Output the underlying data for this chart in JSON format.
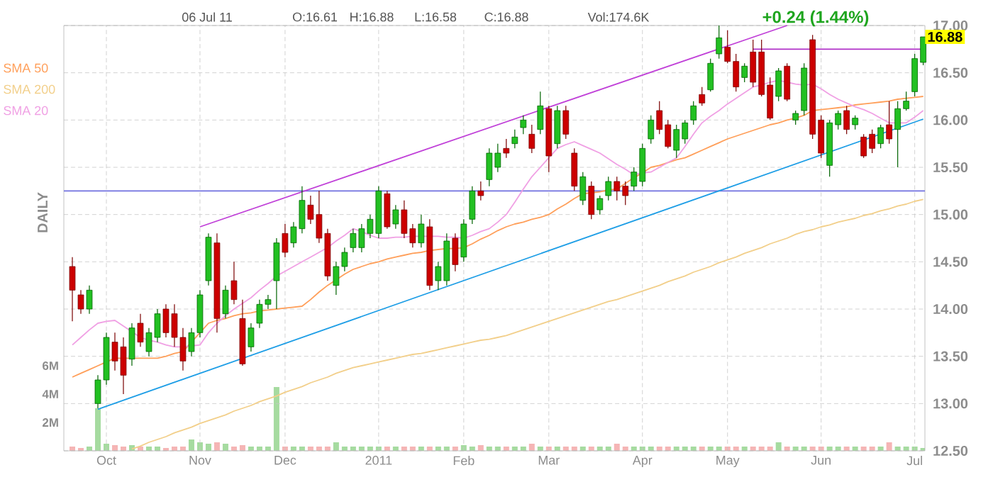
{
  "chart_data": {
    "type": "candlestick",
    "annotations": [
      "06 Jul 11",
      "O:16.61",
      "H:16.88",
      "L:16.58",
      "C:16.88",
      "Vol:174.6K",
      "+0.24 (1.44%)",
      "DAILY",
      {
        "text": "16.88",
        "y": 16.88
      }
    ],
    "categories": [
      null,
      null,
      null,
      null,
      "Oct",
      null,
      null,
      null,
      null,
      null,
      null,
      null,
      null,
      null,
      null,
      "Nov",
      null,
      null,
      null,
      null,
      null,
      null,
      null,
      null,
      null,
      "Dec",
      null,
      null,
      null,
      null,
      null,
      null,
      null,
      null,
      null,
      null,
      "2011",
      null,
      null,
      null,
      null,
      null,
      null,
      null,
      null,
      null,
      "Feb",
      null,
      null,
      null,
      null,
      null,
      null,
      null,
      null,
      null,
      "Mar",
      null,
      null,
      null,
      null,
      null,
      null,
      null,
      null,
      null,
      null,
      "Apr",
      null,
      null,
      null,
      null,
      null,
      null,
      null,
      null,
      null,
      "May",
      null,
      null,
      null,
      null,
      null,
      null,
      null,
      null,
      null,
      null,
      "Jun",
      null,
      null,
      null,
      null,
      null,
      null,
      null,
      null,
      null,
      null,
      "Jul",
      null
    ],
    "ohlc": [
      [
        14.45,
        14.55,
        13.87,
        14.2
      ],
      [
        14.15,
        14.2,
        13.95,
        14.0
      ],
      [
        14.0,
        14.25,
        13.95,
        14.2
      ],
      [
        13.0,
        13.3,
        12.95,
        13.25
      ],
      [
        13.25,
        13.75,
        13.2,
        13.7
      ],
      [
        13.65,
        13.75,
        13.35,
        13.45
      ],
      [
        13.6,
        13.7,
        13.1,
        13.3
      ],
      [
        13.47,
        13.85,
        13.4,
        13.8
      ],
      [
        13.85,
        13.95,
        13.6,
        13.65
      ],
      [
        13.55,
        13.8,
        13.5,
        13.75
      ],
      [
        13.7,
        14.0,
        13.65,
        13.95
      ],
      [
        14.0,
        14.05,
        13.7,
        13.75
      ],
      [
        13.95,
        14.05,
        13.6,
        13.7
      ],
      [
        13.7,
        13.8,
        13.35,
        13.45
      ],
      [
        13.55,
        13.8,
        13.5,
        13.75
      ],
      [
        13.75,
        14.2,
        13.7,
        14.15
      ],
      [
        14.3,
        14.8,
        14.25,
        14.76
      ],
      [
        14.7,
        14.8,
        13.75,
        13.9
      ],
      [
        13.95,
        14.25,
        13.9,
        14.2
      ],
      [
        14.3,
        14.5,
        14.05,
        14.1
      ],
      [
        13.9,
        14.1,
        13.4,
        13.42
      ],
      [
        13.6,
        13.85,
        13.55,
        13.8
      ],
      [
        13.85,
        14.1,
        13.8,
        14.05
      ],
      [
        14.05,
        14.15,
        14.0,
        14.1
      ],
      [
        14.3,
        14.75,
        14.0,
        14.7
      ],
      [
        14.8,
        14.9,
        14.55,
        14.6
      ],
      [
        14.7,
        14.92,
        14.65,
        14.87
      ],
      [
        14.85,
        15.3,
        14.8,
        15.15
      ],
      [
        15.1,
        15.2,
        14.9,
        14.95
      ],
      [
        15.0,
        15.25,
        14.7,
        14.75
      ],
      [
        14.8,
        14.85,
        14.3,
        14.35
      ],
      [
        14.25,
        14.5,
        14.15,
        14.45
      ],
      [
        14.45,
        14.65,
        14.4,
        14.6
      ],
      [
        14.65,
        14.85,
        14.6,
        14.8
      ],
      [
        14.65,
        14.9,
        14.6,
        14.85
      ],
      [
        14.8,
        15.0,
        14.75,
        14.95
      ],
      [
        14.8,
        15.3,
        14.75,
        15.25
      ],
      [
        15.22,
        15.25,
        14.85,
        14.87
      ],
      [
        14.9,
        15.1,
        14.85,
        15.05
      ],
      [
        15.05,
        15.15,
        14.75,
        14.8
      ],
      [
        14.85,
        14.9,
        14.65,
        14.7
      ],
      [
        14.7,
        15.0,
        14.65,
        14.9
      ],
      [
        14.87,
        14.95,
        14.2,
        14.25
      ],
      [
        14.3,
        14.5,
        14.2,
        14.45
      ],
      [
        14.3,
        14.8,
        14.25,
        14.72
      ],
      [
        14.75,
        14.8,
        14.4,
        14.47
      ],
      [
        14.55,
        14.95,
        14.5,
        14.9
      ],
      [
        14.95,
        15.3,
        14.9,
        15.25
      ],
      [
        15.25,
        15.35,
        15.15,
        15.2
      ],
      [
        15.37,
        15.7,
        15.3,
        15.65
      ],
      [
        15.5,
        15.75,
        15.45,
        15.65
      ],
      [
        15.7,
        15.8,
        15.6,
        15.65
      ],
      [
        15.75,
        15.9,
        15.7,
        15.82
      ],
      [
        15.92,
        16.05,
        15.85,
        16.0
      ],
      [
        15.85,
        15.95,
        15.65,
        15.7
      ],
      [
        15.9,
        16.3,
        15.85,
        16.15
      ],
      [
        16.12,
        16.15,
        15.45,
        15.62
      ],
      [
        15.75,
        16.15,
        15.7,
        16.1
      ],
      [
        16.1,
        16.15,
        15.8,
        15.85
      ],
      [
        15.65,
        15.7,
        15.25,
        15.3
      ],
      [
        15.15,
        15.45,
        15.1,
        15.4
      ],
      [
        15.3,
        15.35,
        14.95,
        15.0
      ],
      [
        15.05,
        15.2,
        15.0,
        15.17
      ],
      [
        15.2,
        15.4,
        15.15,
        15.35
      ],
      [
        15.35,
        15.4,
        15.15,
        15.25
      ],
      [
        15.3,
        15.35,
        15.1,
        15.2
      ],
      [
        15.3,
        15.5,
        15.25,
        15.45
      ],
      [
        15.35,
        15.75,
        15.3,
        15.7
      ],
      [
        15.8,
        16.05,
        15.75,
        16.0
      ],
      [
        16.1,
        16.2,
        15.85,
        15.9
      ],
      [
        15.95,
        16.0,
        15.7,
        15.72
      ],
      [
        15.68,
        15.95,
        15.6,
        15.9
      ],
      [
        15.8,
        16.0,
        15.75,
        15.97
      ],
      [
        16.0,
        16.2,
        15.95,
        16.15
      ],
      [
        16.27,
        16.35,
        16.15,
        16.18
      ],
      [
        16.32,
        16.65,
        16.3,
        16.6
      ],
      [
        16.7,
        17.0,
        16.65,
        16.87
      ],
      [
        16.77,
        16.95,
        16.6,
        16.62
      ],
      [
        16.62,
        16.7,
        16.3,
        16.35
      ],
      [
        16.45,
        16.6,
        16.4,
        16.57
      ],
      [
        16.72,
        16.85,
        16.35,
        16.4
      ],
      [
        16.72,
        16.85,
        16.25,
        16.27
      ],
      [
        16.37,
        16.45,
        16.0,
        16.02
      ],
      [
        16.25,
        16.55,
        16.2,
        16.52
      ],
      [
        16.57,
        16.6,
        16.2,
        16.22
      ],
      [
        16.0,
        16.1,
        15.95,
        16.07
      ],
      [
        16.1,
        16.6,
        16.05,
        16.55
      ],
      [
        16.85,
        16.9,
        15.8,
        15.85
      ],
      [
        16.0,
        16.05,
        15.6,
        15.65
      ],
      [
        15.52,
        16.0,
        15.4,
        15.97
      ],
      [
        15.95,
        16.1,
        15.9,
        16.07
      ],
      [
        16.1,
        16.15,
        15.85,
        15.9
      ],
      [
        15.95,
        16.05,
        15.9,
        16.02
      ],
      [
        15.82,
        15.85,
        15.6,
        15.62
      ],
      [
        15.85,
        15.9,
        15.65,
        15.7
      ],
      [
        15.75,
        15.95,
        15.7,
        15.92
      ],
      [
        15.95,
        16.2,
        15.75,
        15.8
      ],
      [
        15.9,
        16.2,
        15.5,
        16.12
      ],
      [
        16.12,
        16.3,
        16.1,
        16.2
      ],
      [
        16.3,
        16.7,
        16.25,
        16.65
      ],
      [
        16.61,
        16.88,
        16.58,
        16.88
      ]
    ],
    "series": [
      {
        "name": "SMA 50",
        "type": "line",
        "color": "#ff9f5a",
        "values": [
          13.28,
          13.32,
          13.36,
          13.4,
          13.44,
          13.48,
          13.48,
          13.48,
          13.48,
          13.48,
          13.48,
          13.5,
          13.53,
          13.55,
          13.65,
          13.75,
          13.85,
          13.88,
          13.9,
          13.93,
          13.95,
          13.96,
          13.98,
          13.99,
          14.0,
          14.01,
          14.02,
          14.03,
          14.1,
          14.18,
          14.25,
          14.31,
          14.37,
          14.42,
          14.45,
          14.48,
          14.5,
          14.53,
          14.55,
          14.57,
          14.59,
          14.6,
          14.62,
          14.63,
          14.64,
          14.64,
          14.65,
          14.69,
          14.74,
          14.78,
          14.83,
          14.87,
          14.9,
          14.92,
          14.95,
          14.97,
          15.0,
          15.06,
          15.11,
          15.17,
          15.22,
          15.23,
          15.24,
          15.26,
          15.27,
          15.33,
          15.39,
          15.44,
          15.5,
          15.52,
          15.55,
          15.58,
          15.6,
          15.64,
          15.68,
          15.72,
          15.76,
          15.8,
          15.83,
          15.86,
          15.89,
          15.92,
          15.95,
          15.97,
          16.0,
          16.02,
          16.05,
          16.1,
          16.11,
          16.12,
          16.13,
          16.14,
          16.16,
          16.17,
          16.18,
          16.19,
          16.2,
          16.22,
          16.23,
          16.24,
          16.25
        ]
      },
      {
        "name": "SMA 200",
        "type": "line",
        "color": "#f2cf8a",
        "values": [
          null,
          null,
          null,
          null,
          null,
          null,
          null,
          12.52,
          12.55,
          12.59,
          12.62,
          12.65,
          12.69,
          12.72,
          12.75,
          12.79,
          12.82,
          12.85,
          12.88,
          12.92,
          12.95,
          12.98,
          13.02,
          13.05,
          13.08,
          13.12,
          13.15,
          13.18,
          13.22,
          13.25,
          13.28,
          13.32,
          13.35,
          13.38,
          13.4,
          13.42,
          13.44,
          13.46,
          13.48,
          13.5,
          13.52,
          13.53,
          13.55,
          13.57,
          13.59,
          13.61,
          13.63,
          13.65,
          13.67,
          13.68,
          13.7,
          13.72,
          13.75,
          13.78,
          13.81,
          13.84,
          13.87,
          13.9,
          13.93,
          13.96,
          13.99,
          14.02,
          14.05,
          14.08,
          14.1,
          14.13,
          14.16,
          14.19,
          14.22,
          14.25,
          14.29,
          14.32,
          14.35,
          14.39,
          14.42,
          14.45,
          14.49,
          14.52,
          14.55,
          14.59,
          14.62,
          14.65,
          14.69,
          14.72,
          14.75,
          14.79,
          14.82,
          14.84,
          14.87,
          14.89,
          14.92,
          14.94,
          14.96,
          14.99,
          15.01,
          15.04,
          15.06,
          15.09,
          15.11,
          15.14,
          15.16
        ]
      },
      {
        "name": "SMA 20",
        "type": "line",
        "color": "#f0a0e4",
        "values": [
          13.62,
          13.7,
          13.78,
          13.85,
          13.87,
          13.88,
          13.82,
          13.76,
          13.7,
          13.67,
          13.65,
          13.62,
          13.6,
          13.6,
          13.61,
          13.62,
          13.75,
          13.85,
          13.93,
          14.0,
          14.06,
          14.12,
          14.2,
          14.27,
          14.35,
          14.4,
          14.45,
          14.5,
          14.55,
          14.6,
          14.65,
          14.72,
          14.78,
          14.85,
          14.82,
          14.78,
          14.75,
          14.75,
          14.76,
          14.76,
          14.77,
          14.77,
          14.77,
          14.77,
          14.76,
          14.76,
          14.75,
          14.78,
          14.82,
          14.85,
          14.92,
          15.0,
          15.13,
          15.27,
          15.4,
          15.5,
          15.6,
          15.7,
          15.74,
          15.77,
          15.73,
          15.69,
          15.65,
          15.59,
          15.53,
          15.48,
          15.42,
          15.44,
          15.45,
          15.5,
          15.55,
          15.6,
          15.72,
          15.85,
          15.97,
          16.04,
          16.1,
          16.17,
          16.23,
          16.29,
          16.35,
          16.37,
          16.4,
          16.42,
          16.4,
          16.38,
          16.37,
          16.38,
          16.33,
          16.27,
          16.22,
          16.18,
          16.14,
          16.11,
          16.07,
          16.02,
          15.97,
          15.97,
          15.97,
          16.03,
          16.1
        ]
      },
      {
        "type": "line",
        "color": "#c040d8",
        "values": [
          null,
          null,
          null,
          null,
          null,
          null,
          null,
          null,
          null,
          null,
          null,
          null,
          null,
          null,
          null,
          14.87,
          null,
          null,
          null,
          null,
          null,
          null,
          null,
          null,
          null,
          null,
          null,
          null,
          null,
          null,
          null,
          null,
          null,
          null,
          null,
          null,
          null,
          null,
          null,
          null,
          null,
          null,
          null,
          null,
          null,
          null,
          null,
          null,
          null,
          null,
          null,
          null,
          null,
          null,
          null,
          null,
          null,
          null,
          null,
          null,
          null,
          null,
          null,
          null,
          null,
          null,
          null,
          null,
          null,
          null,
          null,
          null,
          null,
          null,
          null,
          null,
          null,
          null,
          null,
          null,
          null,
          null,
          null,
          null,
          17.0,
          null,
          null,
          null,
          null,
          null,
          null,
          null,
          null,
          null,
          null,
          null,
          null,
          null,
          null,
          null,
          null
        ]
      },
      {
        "type": "line",
        "color": "#1e9ee6",
        "values": [
          null,
          null,
          null,
          12.94,
          null,
          null,
          null,
          null,
          null,
          null,
          null,
          null,
          null,
          null,
          null,
          null,
          null,
          null,
          null,
          null,
          null,
          null,
          null,
          null,
          null,
          null,
          null,
          null,
          null,
          null,
          null,
          null,
          null,
          null,
          null,
          null,
          null,
          null,
          null,
          null,
          null,
          null,
          null,
          null,
          null,
          null,
          null,
          null,
          null,
          null,
          null,
          null,
          null,
          null,
          null,
          null,
          null,
          null,
          null,
          null,
          null,
          null,
          null,
          null,
          null,
          null,
          null,
          null,
          null,
          null,
          null,
          null,
          null,
          null,
          null,
          null,
          null,
          null,
          null,
          null,
          null,
          null,
          null,
          null,
          null,
          null,
          null,
          null,
          null,
          null,
          null,
          null,
          null,
          null,
          null,
          null,
          null,
          null,
          null,
          null,
          16.01
        ]
      },
      {
        "type": "line",
        "color": "#b030c8",
        "values": [
          null,
          null,
          null,
          null,
          null,
          null,
          null,
          null,
          null,
          null,
          null,
          null,
          null,
          null,
          null,
          null,
          null,
          null,
          null,
          null,
          null,
          null,
          null,
          null,
          null,
          null,
          null,
          null,
          null,
          null,
          null,
          null,
          null,
          null,
          null,
          null,
          null,
          null,
          null,
          null,
          null,
          null,
          null,
          null,
          null,
          null,
          null,
          null,
          null,
          null,
          null,
          null,
          null,
          null,
          null,
          null,
          null,
          null,
          null,
          null,
          null,
          null,
          null,
          null,
          null,
          null,
          null,
          null,
          null,
          null,
          null,
          null,
          null,
          null,
          null,
          null,
          null,
          null,
          null,
          null,
          16.75,
          null,
          null,
          null,
          null,
          null,
          null,
          null,
          null,
          null,
          null,
          null,
          null,
          null,
          null,
          null,
          null,
          null,
          null,
          null,
          16.75
        ]
      },
      {
        "type": "bar",
        "axis": "y2",
        "color": "#a6dba0",
        "values": [
          null,
          null,
          0.3,
          3.0,
          0.5,
          null,
          null,
          0.4,
          null,
          0.3,
          0.3,
          null,
          null,
          null,
          0.8,
          0.6,
          0.5,
          null,
          0.5,
          null,
          null,
          0.3,
          0.3,
          0.3,
          4.5,
          null,
          0.3,
          0.3,
          null,
          null,
          null,
          0.6,
          0.3,
          0.3,
          0.3,
          0.3,
          0.3,
          null,
          0.3,
          null,
          null,
          0.3,
          null,
          0.3,
          0.3,
          null,
          0.4,
          0.3,
          null,
          0.3,
          0.3,
          null,
          0.3,
          0.3,
          null,
          0.3,
          null,
          0.3,
          null,
          null,
          0.3,
          null,
          0.3,
          0.3,
          null,
          null,
          0.3,
          0.3,
          0.3,
          null,
          null,
          0.3,
          0.3,
          0.3,
          null,
          0.3,
          0.3,
          null,
          null,
          0.3,
          null,
          null,
          null,
          0.6,
          null,
          0.3,
          0.3,
          null,
          null,
          0.3,
          0.3,
          null,
          0.3,
          null,
          null,
          0.3,
          null,
          0.3,
          0.3,
          0.3,
          0.2
        ]
      },
      {
        "type": "bar",
        "axis": "y2",
        "color": "#f5b5b5",
        "values": [
          0.3,
          0.2,
          null,
          null,
          null,
          0.4,
          0.3,
          null,
          0.3,
          null,
          null,
          0.2,
          0.3,
          0.3,
          null,
          null,
          null,
          0.6,
          null,
          0.3,
          0.4,
          null,
          null,
          null,
          null,
          0.3,
          null,
          null,
          0.3,
          0.3,
          0.3,
          null,
          null,
          null,
          null,
          null,
          null,
          0.3,
          null,
          0.3,
          0.3,
          null,
          0.3,
          null,
          null,
          0.3,
          null,
          null,
          0.4,
          null,
          null,
          0.3,
          null,
          null,
          0.5,
          null,
          0.3,
          null,
          0.3,
          0.3,
          null,
          0.3,
          null,
          null,
          0.5,
          0.3,
          null,
          null,
          null,
          0.3,
          0.3,
          null,
          null,
          null,
          0.3,
          null,
          null,
          0.3,
          0.3,
          null,
          0.3,
          0.3,
          0.3,
          null,
          0.3,
          null,
          null,
          0.3,
          0.3,
          null,
          null,
          0.3,
          null,
          0.3,
          0.3,
          null,
          0.6,
          null,
          null,
          null,
          null
        ]
      }
    ],
    "ylim": [
      12.5,
      17.0
    ],
    "yticks": [
      {
        "value": 12.5,
        "label": "12.50"
      },
      {
        "value": 13.0,
        "label": "13.00"
      },
      {
        "value": 13.5,
        "label": "13.50"
      },
      {
        "value": 14.0,
        "label": "14.00"
      },
      {
        "value": 14.5,
        "label": "14.50"
      },
      {
        "value": 15.0,
        "label": "15.00"
      },
      {
        "value": 15.5,
        "label": "15.50"
      },
      {
        "value": 16.0,
        "label": "16.00"
      },
      {
        "value": 16.5,
        "label": "16.50"
      },
      {
        "value": 17.0,
        "label": "17.00"
      }
    ],
    "y2lim": [
      0,
      30
    ],
    "y2ticks": [
      {
        "value": 2,
        "label": "2M"
      },
      {
        "value": 4,
        "label": "4M"
      },
      {
        "value": 6,
        "label": "6M"
      }
    ],
    "ref_lines": [
      {
        "axis": "y",
        "value": 15.25,
        "color": "#7070e0"
      }
    ],
    "grid": true,
    "legend": "top left"
  }
}
